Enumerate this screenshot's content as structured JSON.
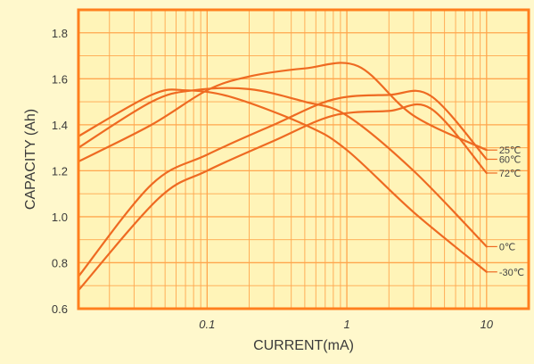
{
  "colors": {
    "background": "#fff8cc",
    "plot_background": "#fff4b8",
    "frame": "#ff7f1e",
    "grid": "#ffa64d",
    "series": "#ee6a22",
    "text": "#3a3a3a"
  },
  "chart_data": {
    "type": "line",
    "title": "",
    "xlabel": "CURRENT(mA)",
    "ylabel": "CAPACITY (Ah)",
    "x_scale": "log",
    "xlim": [
      0.012,
      20
    ],
    "ylim": [
      0.6,
      1.9
    ],
    "grid": true,
    "legend": "none",
    "x_ticks": [
      {
        "value": 0.1,
        "label": "0.1"
      },
      {
        "value": 1,
        "label": "1"
      },
      {
        "value": 10,
        "label": "10"
      }
    ],
    "y_ticks": [
      {
        "value": 0.6,
        "label": "0.6"
      },
      {
        "value": 0.8,
        "label": "0.8"
      },
      {
        "value": 1.0,
        "label": "1.0"
      },
      {
        "value": 1.2,
        "label": "1.2"
      },
      {
        "value": 1.4,
        "label": "1.4"
      },
      {
        "value": 1.6,
        "label": "1.6"
      },
      {
        "value": 1.8,
        "label": "1.8"
      }
    ],
    "series": [
      {
        "name": "25℃",
        "points": [
          [
            0.012,
            1.24
          ],
          [
            0.04,
            1.4
          ],
          [
            0.1,
            1.55
          ],
          [
            0.2,
            1.61
          ],
          [
            0.5,
            1.645
          ],
          [
            1.2,
            1.655
          ],
          [
            3,
            1.44
          ],
          [
            10,
            1.29
          ]
        ]
      },
      {
        "name": "60℃",
        "points": [
          [
            0.012,
            0.74
          ],
          [
            0.04,
            1.14
          ],
          [
            0.1,
            1.27
          ],
          [
            0.3,
            1.4
          ],
          [
            0.8,
            1.51
          ],
          [
            2,
            1.53
          ],
          [
            4,
            1.525
          ],
          [
            10,
            1.25
          ]
        ]
      },
      {
        "name": "72℃",
        "points": [
          [
            0.012,
            0.68
          ],
          [
            0.045,
            1.08
          ],
          [
            0.1,
            1.2
          ],
          [
            0.3,
            1.33
          ],
          [
            0.8,
            1.44
          ],
          [
            2,
            1.46
          ],
          [
            4,
            1.47
          ],
          [
            10,
            1.19
          ]
        ]
      },
      {
        "name": "0℃",
        "points": [
          [
            0.012,
            1.3
          ],
          [
            0.04,
            1.5
          ],
          [
            0.08,
            1.55
          ],
          [
            0.2,
            1.555
          ],
          [
            0.5,
            1.5
          ],
          [
            1,
            1.44
          ],
          [
            3,
            1.2
          ],
          [
            10,
            0.87
          ]
        ]
      },
      {
        "name": "-30℃",
        "points": [
          [
            0.012,
            1.35
          ],
          [
            0.04,
            1.53
          ],
          [
            0.07,
            1.55
          ],
          [
            0.15,
            1.52
          ],
          [
            0.5,
            1.4
          ],
          [
            1,
            1.29
          ],
          [
            3,
            1.02
          ],
          [
            10,
            0.76
          ]
        ]
      }
    ]
  }
}
